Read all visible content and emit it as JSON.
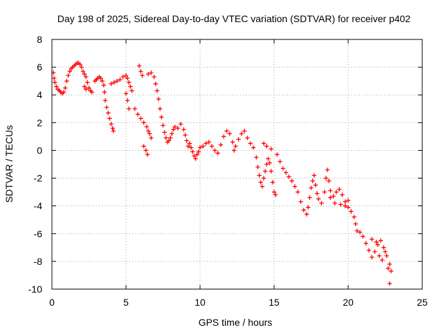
{
  "chart_data": {
    "type": "scatter",
    "title": "Day 198 of 2025, Sidereal Day-to-day VTEC variation (SDTVAR) for receiver p402",
    "xlabel": "GPS time / hours",
    "ylabel": "SDTVAR / TECUs",
    "xlim": [
      0,
      25
    ],
    "ylim": [
      -10,
      8
    ],
    "xticks": [
      0,
      5,
      10,
      15,
      20,
      25
    ],
    "yticks": [
      -10,
      -8,
      -6,
      -4,
      -2,
      0,
      2,
      4,
      6,
      8
    ],
    "grid": true,
    "marker": "+",
    "color": "#ff0000",
    "series": [
      {
        "name": "SDTVAR",
        "points": [
          [
            0.1,
            5.6
          ],
          [
            0.15,
            5.2
          ],
          [
            0.2,
            4.9
          ],
          [
            0.3,
            4.6
          ],
          [
            0.4,
            4.4
          ],
          [
            0.5,
            4.3
          ],
          [
            0.6,
            4.2
          ],
          [
            0.7,
            4.1
          ],
          [
            0.8,
            4.2
          ],
          [
            0.9,
            4.5
          ],
          [
            1.0,
            5.0
          ],
          [
            1.1,
            5.4
          ],
          [
            1.2,
            5.7
          ],
          [
            1.3,
            5.9
          ],
          [
            1.4,
            6.0
          ],
          [
            1.5,
            6.1
          ],
          [
            1.6,
            6.2
          ],
          [
            1.7,
            6.3
          ],
          [
            1.8,
            6.3
          ],
          [
            1.9,
            6.2
          ],
          [
            2.0,
            6.0
          ],
          [
            2.1,
            5.7
          ],
          [
            2.2,
            5.5
          ],
          [
            2.3,
            5.3
          ],
          [
            2.4,
            4.9
          ],
          [
            2.5,
            4.5
          ],
          [
            2.6,
            4.3
          ],
          [
            2.7,
            4.2
          ],
          [
            2.2,
            4.6
          ],
          [
            2.3,
            4.4
          ],
          [
            2.9,
            5.0
          ],
          [
            3.0,
            5.1
          ],
          [
            3.1,
            5.2
          ],
          [
            3.2,
            5.3
          ],
          [
            3.3,
            5.2
          ],
          [
            3.4,
            5.0
          ],
          [
            3.5,
            4.7
          ],
          [
            3.55,
            4.2
          ],
          [
            3.6,
            3.6
          ],
          [
            3.7,
            3.1
          ],
          [
            3.8,
            2.7
          ],
          [
            3.9,
            2.3
          ],
          [
            4.0,
            1.9
          ],
          [
            4.1,
            1.6
          ],
          [
            4.15,
            1.4
          ],
          [
            4.0,
            4.8
          ],
          [
            4.2,
            4.9
          ],
          [
            4.4,
            5.0
          ],
          [
            4.6,
            5.1
          ],
          [
            4.8,
            5.3
          ],
          [
            5.0,
            5.4
          ],
          [
            5.1,
            5.2
          ],
          [
            5.2,
            4.9
          ],
          [
            5.3,
            4.6
          ],
          [
            5.4,
            4.3
          ],
          [
            5.0,
            4.1
          ],
          [
            5.1,
            3.6
          ],
          [
            5.2,
            3.0
          ],
          [
            5.6,
            3.0
          ],
          [
            5.8,
            2.6
          ],
          [
            6.0,
            2.3
          ],
          [
            6.2,
            2.0
          ],
          [
            6.4,
            1.7
          ],
          [
            6.5,
            1.4
          ],
          [
            6.6,
            1.2
          ],
          [
            6.7,
            0.9
          ],
          [
            5.9,
            6.1
          ],
          [
            6.0,
            5.7
          ],
          [
            6.1,
            5.4
          ],
          [
            6.2,
            0.3
          ],
          [
            6.35,
            0.0
          ],
          [
            6.45,
            -0.3
          ],
          [
            6.5,
            5.5
          ],
          [
            6.7,
            5.6
          ],
          [
            6.9,
            5.3
          ],
          [
            7.0,
            4.8
          ],
          [
            7.1,
            4.3
          ],
          [
            7.2,
            3.7
          ],
          [
            7.3,
            3.0
          ],
          [
            7.4,
            2.4
          ],
          [
            7.5,
            1.8
          ],
          [
            7.6,
            1.3
          ],
          [
            7.7,
            0.9
          ],
          [
            7.8,
            0.6
          ],
          [
            7.9,
            0.7
          ],
          [
            8.0,
            0.9
          ],
          [
            8.1,
            1.2
          ],
          [
            8.2,
            1.5
          ],
          [
            8.3,
            1.7
          ],
          [
            8.5,
            1.6
          ],
          [
            8.7,
            1.9
          ],
          [
            8.9,
            1.5
          ],
          [
            9.0,
            1.1
          ],
          [
            9.1,
            0.7
          ],
          [
            9.2,
            0.3
          ],
          [
            9.3,
            0.5
          ],
          [
            9.4,
            0.2
          ],
          [
            9.5,
            -0.1
          ],
          [
            9.6,
            -0.4
          ],
          [
            9.7,
            -0.6
          ],
          [
            9.8,
            -0.3
          ],
          [
            9.9,
            -0.1
          ],
          [
            10.0,
            0.2
          ],
          [
            10.2,
            0.3
          ],
          [
            10.4,
            0.5
          ],
          [
            10.6,
            0.6
          ],
          [
            10.8,
            0.3
          ],
          [
            11.0,
            0.0
          ],
          [
            11.2,
            -0.2
          ],
          [
            11.4,
            0.4
          ],
          [
            11.6,
            1.0
          ],
          [
            11.8,
            1.4
          ],
          [
            12.0,
            1.2
          ],
          [
            12.2,
            0.6
          ],
          [
            12.3,
            0.0
          ],
          [
            12.4,
            0.3
          ],
          [
            12.6,
            0.8
          ],
          [
            12.8,
            1.2
          ],
          [
            13.0,
            1.4
          ],
          [
            13.2,
            0.9
          ],
          [
            13.4,
            0.5
          ],
          [
            13.6,
            0.2
          ],
          [
            13.8,
            -0.5
          ],
          [
            13.9,
            -1.2
          ],
          [
            14.0,
            -1.8
          ],
          [
            14.1,
            -2.3
          ],
          [
            14.2,
            -2.6
          ],
          [
            14.3,
            -2.0
          ],
          [
            14.4,
            -1.5
          ],
          [
            14.5,
            -1.0
          ],
          [
            14.6,
            -0.6
          ],
          [
            14.7,
            -0.9
          ],
          [
            14.8,
            -1.5
          ],
          [
            14.9,
            -2.3
          ],
          [
            15.0,
            -3.0
          ],
          [
            15.1,
            -3.2
          ],
          [
            14.3,
            0.5
          ],
          [
            14.5,
            0.3
          ],
          [
            14.8,
            0.1
          ],
          [
            15.2,
            -0.3
          ],
          [
            15.4,
            -0.8
          ],
          [
            15.6,
            -1.3
          ],
          [
            15.8,
            -1.6
          ],
          [
            16.0,
            -1.9
          ],
          [
            16.2,
            -2.2
          ],
          [
            16.4,
            -2.6
          ],
          [
            16.6,
            -3.0
          ],
          [
            16.8,
            -3.7
          ],
          [
            17.0,
            -4.3
          ],
          [
            17.2,
            -4.6
          ],
          [
            17.3,
            -4.1
          ],
          [
            17.4,
            -3.4
          ],
          [
            17.5,
            -2.7
          ],
          [
            17.6,
            -2.2
          ],
          [
            17.7,
            -1.8
          ],
          [
            17.8,
            -2.5
          ],
          [
            17.9,
            -3.1
          ],
          [
            18.0,
            -3.5
          ],
          [
            18.2,
            -3.8
          ],
          [
            18.4,
            -3.0
          ],
          [
            18.5,
            -2.0
          ],
          [
            18.6,
            -1.4
          ],
          [
            18.7,
            -2.2
          ],
          [
            18.8,
            -2.9
          ],
          [
            19.0,
            -3.3
          ],
          [
            19.2,
            -3.0
          ],
          [
            19.4,
            -2.8
          ],
          [
            19.6,
            -3.2
          ],
          [
            19.8,
            -3.7
          ],
          [
            20.0,
            -4.1
          ],
          [
            20.2,
            -4.4
          ],
          [
            20.4,
            -4.8
          ],
          [
            20.5,
            -5.3
          ],
          [
            20.6,
            -5.8
          ],
          [
            20.8,
            -5.9
          ],
          [
            19.5,
            -3.9
          ],
          [
            19.8,
            -4.0
          ],
          [
            20.0,
            -3.6
          ],
          [
            18.8,
            -3.4
          ],
          [
            19.1,
            -3.8
          ],
          [
            21.0,
            -6.2
          ],
          [
            21.2,
            -6.7
          ],
          [
            21.4,
            -7.2
          ],
          [
            21.6,
            -7.7
          ],
          [
            21.8,
            -7.3
          ],
          [
            22.0,
            -6.8
          ],
          [
            22.2,
            -6.5
          ],
          [
            22.4,
            -7.0
          ],
          [
            22.6,
            -7.6
          ],
          [
            22.8,
            -8.2
          ],
          [
            21.6,
            -6.4
          ],
          [
            21.9,
            -6.6
          ],
          [
            22.1,
            -7.6
          ],
          [
            22.3,
            -7.9
          ],
          [
            22.5,
            -7.3
          ],
          [
            22.7,
            -8.5
          ],
          [
            22.9,
            -8.7
          ],
          [
            22.8,
            -9.6
          ]
        ]
      }
    ]
  }
}
